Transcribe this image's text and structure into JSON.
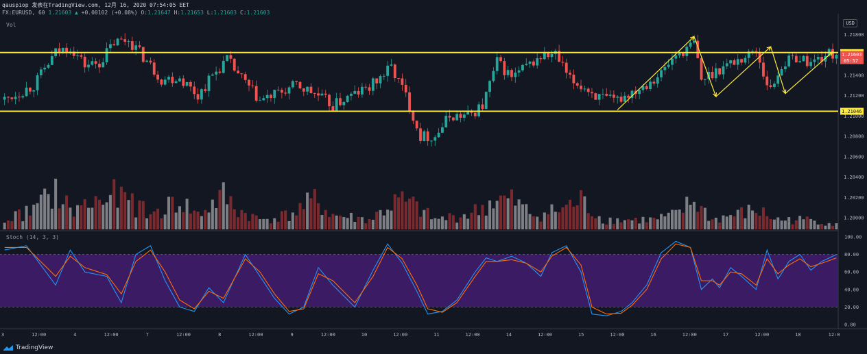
{
  "header": {
    "line1": "qauspiop 发表在TradingView.com, 12月 16, 2020 07:54:05 EET",
    "symbol": "FX:EURUSD, 60",
    "last": "1.21603",
    "change_arrow": "▲",
    "change": "+0.00102 (+0.08%)",
    "o_label": "O:",
    "o": "1.21647",
    "h_label": "H:",
    "h": "1.21653",
    "l_label": "L:",
    "l": "1.21603",
    "c_label": "C:",
    "c": "1.21603"
  },
  "vol_label": "Vol",
  "stoch_label": "Stoch (14, 3, 3)",
  "currency": "USD",
  "footer": {
    "brand": "TradingView"
  },
  "colors": {
    "up": "#26a69a",
    "down": "#ef5350",
    "level": "#ffeb3b",
    "k": "#2196f3",
    "d": "#ff6d00",
    "band": "#4a1d7a"
  },
  "chart_data": [
    {
      "type": "candlestick",
      "title": "",
      "price_axis_ticks": [
        "1.21800",
        "1.21400",
        "1.21200",
        "1.21000",
        "1.20800",
        "1.20600",
        "1.20400",
        "1.20200",
        "1.20000"
      ],
      "ylim": [
        1.1988,
        1.2195
      ],
      "horizontal_levels": [
        {
          "value": 1.21622,
          "label": "1.21622"
        },
        {
          "value": 1.21046,
          "label": "1.21046"
        }
      ],
      "last_price_label": "1.21603",
      "countdown_label": "05:57",
      "x_ticks": [
        "3",
        "12:00",
        "4",
        "12:00",
        "7",
        "12:00",
        "8",
        "12:00",
        "9",
        "12:00",
        "10",
        "12:00",
        "11",
        "12:00",
        "14",
        "12:00",
        "15",
        "12:00",
        "16",
        "12:00",
        "17",
        "12:00",
        "18",
        "12:0"
      ],
      "path_keypoints": [
        [
          0,
          1.2116
        ],
        [
          8,
          1.213
        ],
        [
          14,
          1.2162
        ],
        [
          18,
          1.2168
        ],
        [
          22,
          1.215
        ],
        [
          26,
          1.2152
        ],
        [
          30,
          1.2172
        ],
        [
          34,
          1.2175
        ],
        [
          38,
          1.2158
        ],
        [
          43,
          1.2136
        ],
        [
          48,
          1.2138
        ],
        [
          53,
          1.212
        ],
        [
          57,
          1.214
        ],
        [
          61,
          1.2155
        ],
        [
          66,
          1.2132
        ],
        [
          70,
          1.2115
        ],
        [
          75,
          1.2122
        ],
        [
          80,
          1.213
        ],
        [
          85,
          1.2122
        ],
        [
          90,
          1.211
        ],
        [
          95,
          1.212
        ],
        [
          100,
          1.2128
        ],
        [
          106,
          1.2148
        ],
        [
          110,
          1.212
        ],
        [
          114,
          1.208
        ],
        [
          118,
          1.208
        ],
        [
          122,
          1.21
        ],
        [
          127,
          1.21
        ],
        [
          131,
          1.211
        ],
        [
          135,
          1.2153
        ],
        [
          139,
          1.2138
        ],
        [
          143,
          1.2148
        ],
        [
          147,
          1.2158
        ],
        [
          151,
          1.216
        ],
        [
          155,
          1.2135
        ],
        [
          159,
          1.2128
        ],
        [
          163,
          1.2118
        ],
        [
          167,
          1.2114
        ],
        [
          171,
          1.2122
        ],
        [
          175,
          1.213
        ],
        [
          180,
          1.2142
        ],
        [
          184,
          1.216
        ],
        [
          187,
          1.2165
        ],
        [
          189,
          1.2172
        ],
        [
          191,
          1.2135
        ],
        [
          195,
          1.2145
        ],
        [
          199,
          1.2152
        ],
        [
          203,
          1.2158
        ],
        [
          206,
          1.2165
        ],
        [
          208,
          1.2142
        ],
        [
          210,
          1.2125
        ],
        [
          213,
          1.215
        ],
        [
          217,
          1.2158
        ],
        [
          221,
          1.2152
        ],
        [
          225,
          1.216
        ],
        [
          228,
          1.2161
        ]
      ],
      "volume_shape": [
        [
          0,
          2
        ],
        [
          8,
          4
        ],
        [
          14,
          8
        ],
        [
          18,
          4
        ],
        [
          30,
          7
        ],
        [
          34,
          6
        ],
        [
          40,
          3
        ],
        [
          48,
          6
        ],
        [
          53,
          3
        ],
        [
          60,
          7
        ],
        [
          64,
          4
        ],
        [
          70,
          2
        ],
        [
          78,
          3
        ],
        [
          85,
          6
        ],
        [
          90,
          3
        ],
        [
          100,
          2
        ],
        [
          108,
          6
        ],
        [
          112,
          5
        ],
        [
          118,
          2
        ],
        [
          126,
          3
        ],
        [
          130,
          4
        ],
        [
          134,
          6
        ],
        [
          139,
          6
        ],
        [
          145,
          3
        ],
        [
          152,
          4
        ],
        [
          158,
          6
        ],
        [
          164,
          2
        ],
        [
          172,
          2
        ],
        [
          178,
          2
        ],
        [
          184,
          3
        ],
        [
          189,
          6
        ],
        [
          194,
          2
        ],
        [
          200,
          3
        ],
        [
          206,
          4
        ],
        [
          212,
          2
        ],
        [
          222,
          2
        ],
        [
          228,
          1
        ]
      ],
      "annotation_zigzag": [
        [
          168,
          1.2106
        ],
        [
          189,
          1.2178
        ],
        [
          195,
          1.2119
        ],
        [
          210,
          1.2168
        ],
        [
          214,
          1.2122
        ],
        [
          227,
          1.2163
        ]
      ]
    },
    {
      "type": "line",
      "title": "Stoch (14, 3, 3)",
      "ylim": [
        0,
        100
      ],
      "y_ticks": [
        "100.00",
        "80.00",
        "60.00",
        "40.00",
        "20.00",
        "0.00"
      ],
      "band": [
        20,
        80
      ],
      "series": [
        {
          "name": "%K",
          "points": [
            [
              0,
              85
            ],
            [
              6,
              90
            ],
            [
              14,
              45
            ],
            [
              18,
              85
            ],
            [
              22,
              60
            ],
            [
              28,
              55
            ],
            [
              32,
              25
            ],
            [
              36,
              80
            ],
            [
              40,
              90
            ],
            [
              44,
              50
            ],
            [
              48,
              20
            ],
            [
              52,
              15
            ],
            [
              56,
              42
            ],
            [
              60,
              25
            ],
            [
              66,
              80
            ],
            [
              70,
              55
            ],
            [
              74,
              30
            ],
            [
              78,
              12
            ],
            [
              82,
              20
            ],
            [
              86,
              65
            ],
            [
              90,
              45
            ],
            [
              96,
              20
            ],
            [
              101,
              62
            ],
            [
              105,
              92
            ],
            [
              109,
              70
            ],
            [
              113,
              38
            ],
            [
              116,
              12
            ],
            [
              120,
              15
            ],
            [
              124,
              28
            ],
            [
              129,
              60
            ],
            [
              132,
              76
            ],
            [
              135,
              72
            ],
            [
              139,
              78
            ],
            [
              143,
              70
            ],
            [
              147,
              55
            ],
            [
              150,
              82
            ],
            [
              154,
              90
            ],
            [
              158,
              60
            ],
            [
              161,
              12
            ],
            [
              165,
              10
            ],
            [
              169,
              15
            ],
            [
              172,
              25
            ],
            [
              176,
              45
            ],
            [
              180,
              82
            ],
            [
              184,
              95
            ],
            [
              188,
              88
            ],
            [
              191,
              40
            ],
            [
              194,
              52
            ],
            [
              196,
              42
            ],
            [
              199,
              65
            ],
            [
              202,
              55
            ],
            [
              206,
              40
            ],
            [
              209,
              85
            ],
            [
              212,
              52
            ],
            [
              215,
              72
            ],
            [
              218,
              80
            ],
            [
              221,
              62
            ],
            [
              224,
              72
            ],
            [
              228,
              80
            ]
          ]
        },
        {
          "name": "%D",
          "points": [
            [
              0,
              88
            ],
            [
              6,
              88
            ],
            [
              14,
              55
            ],
            [
              18,
              78
            ],
            [
              22,
              65
            ],
            [
              28,
              57
            ],
            [
              32,
              35
            ],
            [
              36,
              72
            ],
            [
              40,
              85
            ],
            [
              44,
              60
            ],
            [
              48,
              28
            ],
            [
              52,
              18
            ],
            [
              56,
              38
            ],
            [
              60,
              30
            ],
            [
              66,
              75
            ],
            [
              70,
              60
            ],
            [
              74,
              35
            ],
            [
              78,
              15
            ],
            [
              82,
              18
            ],
            [
              86,
              58
            ],
            [
              90,
              50
            ],
            [
              96,
              25
            ],
            [
              101,
              55
            ],
            [
              105,
              88
            ],
            [
              109,
              75
            ],
            [
              113,
              45
            ],
            [
              116,
              18
            ],
            [
              120,
              14
            ],
            [
              124,
              25
            ],
            [
              129,
              55
            ],
            [
              132,
              72
            ],
            [
              135,
              72
            ],
            [
              139,
              74
            ],
            [
              143,
              70
            ],
            [
              147,
              60
            ],
            [
              150,
              78
            ],
            [
              154,
              88
            ],
            [
              158,
              68
            ],
            [
              161,
              20
            ],
            [
              165,
              12
            ],
            [
              169,
              13
            ],
            [
              172,
              22
            ],
            [
              176,
              40
            ],
            [
              180,
              75
            ],
            [
              184,
              92
            ],
            [
              188,
              88
            ],
            [
              191,
              50
            ],
            [
              194,
              50
            ],
            [
              196,
              45
            ],
            [
              199,
              60
            ],
            [
              202,
              58
            ],
            [
              206,
              45
            ],
            [
              209,
              75
            ],
            [
              212,
              58
            ],
            [
              215,
              68
            ],
            [
              218,
              75
            ],
            [
              221,
              66
            ],
            [
              224,
              70
            ],
            [
              228,
              76
            ]
          ]
        }
      ]
    }
  ]
}
